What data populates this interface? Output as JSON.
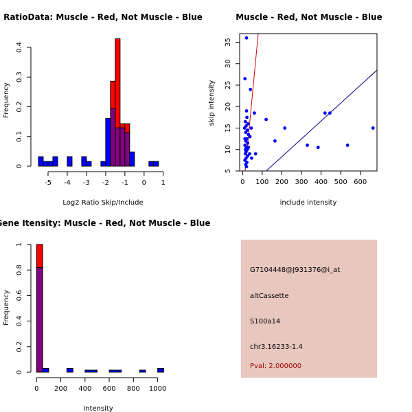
{
  "colors": {
    "muscle": "#ff0000",
    "not_muscle": "#0000ff",
    "overlap": "#800080",
    "info_bg": "#e8c7bf",
    "pval": "#a00000",
    "ratio_line": "#cc0000",
    "diag_line": "#00008b"
  },
  "info_panel": {
    "probe_id": "G7104448@J931376@i_at",
    "event_type": "altCassette",
    "gene": "S100a14",
    "location": "chr3.16233-1.4",
    "pval": "Pval: 2.000000"
  },
  "chart_data": [
    {
      "type": "histogram",
      "title": "RatioData: Muscle - Red, Not Muscle - Blue",
      "xlabel": "Log2 Ratio Skip/Include",
      "ylabel": "Frequency",
      "xlim": [
        -5.75,
        1.4
      ],
      "ylim": [
        0,
        0.43
      ],
      "xticks": [
        -5,
        -4,
        -3,
        -2,
        -1,
        0,
        1
      ],
      "yticks": [
        0.0,
        0.1,
        0.2,
        0.3,
        0.4
      ],
      "bin_width": 0.25,
      "bins_start": [
        -5.5,
        -5.25,
        -5.0,
        -4.75,
        -4.5,
        -4.25,
        -4.0,
        -3.75,
        -3.5,
        -3.25,
        -3.0,
        -2.75,
        -2.5,
        -2.25,
        -2.0,
        -1.75,
        -1.5,
        -1.25,
        -1.0,
        -0.75,
        -0.5,
        -0.25,
        0.0,
        0.25,
        0.5,
        0.75,
        1.0
      ],
      "series": [
        {
          "name": "Not Muscle",
          "values": [
            0.032,
            0.016,
            0.016,
            0.032,
            0,
            0,
            0.032,
            0,
            0,
            0.032,
            0.016,
            0,
            0,
            0.016,
            0.161,
            0.194,
            0.129,
            0.129,
            0.113,
            0.048,
            0,
            0,
            0,
            0.016,
            0.016,
            0,
            0
          ]
        },
        {
          "name": "Muscle",
          "values": [
            0,
            0,
            0,
            0,
            0,
            0,
            0,
            0,
            0,
            0,
            0,
            0,
            0,
            0,
            0,
            0.286,
            0.429,
            0.143,
            0.143,
            0,
            0,
            0,
            0,
            0,
            0,
            0,
            0
          ]
        }
      ]
    },
    {
      "type": "scatter",
      "title": "Muscle - Red, Not Muscle - Blue",
      "xlabel": "include intensity",
      "ylabel": "skip intensity",
      "xlim": [
        -15,
        685
      ],
      "ylim": [
        5,
        37
      ],
      "xticks": [
        0,
        100,
        200,
        300,
        400,
        500,
        600
      ],
      "yticks": [
        5,
        10,
        15,
        20,
        25,
        30,
        35
      ],
      "lines": [
        {
          "name": "ratio-line",
          "intercept": -1.2,
          "slope": 0.48
        },
        {
          "name": "identity-line",
          "intercept": 0,
          "slope": 0.0416
        }
      ],
      "points": [
        [
          20,
          36
        ],
        [
          12,
          26.5
        ],
        [
          40,
          24
        ],
        [
          20,
          19
        ],
        [
          60,
          18.5
        ],
        [
          22,
          17.5
        ],
        [
          14,
          16.5
        ],
        [
          28,
          16
        ],
        [
          18,
          15.5
        ],
        [
          10,
          15
        ],
        [
          44,
          15
        ],
        [
          24,
          14.5
        ],
        [
          16,
          14
        ],
        [
          30,
          13.5
        ],
        [
          38,
          13
        ],
        [
          12,
          12.5
        ],
        [
          22,
          12.5
        ],
        [
          16,
          12
        ],
        [
          26,
          11.5
        ],
        [
          12,
          11
        ],
        [
          20,
          10.5
        ],
        [
          30,
          10.5
        ],
        [
          14,
          10
        ],
        [
          24,
          10
        ],
        [
          18,
          9.5
        ],
        [
          36,
          9
        ],
        [
          14,
          9
        ],
        [
          26,
          8.5
        ],
        [
          18,
          8
        ],
        [
          46,
          8
        ],
        [
          12,
          7.5
        ],
        [
          22,
          7
        ],
        [
          16,
          6.5
        ],
        [
          66,
          9
        ],
        [
          20,
          6
        ],
        [
          120,
          17
        ],
        [
          215,
          15
        ],
        [
          165,
          12
        ],
        [
          330,
          11
        ],
        [
          385,
          10.5
        ],
        [
          420,
          18.5
        ],
        [
          445,
          18.5
        ],
        [
          535,
          11
        ],
        [
          665,
          15
        ]
      ]
    },
    {
      "type": "histogram",
      "title": "Gene Itensity: Muscle - Red, Not Muscle - Blue",
      "xlabel": "Intensity",
      "ylabel": "Frequency",
      "xlim": [
        -30,
        1110
      ],
      "ylim": [
        0,
        1.0
      ],
      "xticks": [
        0,
        200,
        400,
        600,
        800,
        1000
      ],
      "yticks": [
        0.0,
        0.2,
        0.4,
        0.6,
        0.8,
        1.0
      ],
      "bin_width": 50,
      "bins_start": [
        0,
        50,
        100,
        150,
        200,
        250,
        300,
        350,
        400,
        450,
        500,
        550,
        600,
        650,
        700,
        750,
        800,
        850,
        900,
        950,
        1000
      ],
      "series": [
        {
          "name": "Not Muscle",
          "values": [
            0.82,
            0.03,
            0,
            0,
            0,
            0.03,
            0,
            0,
            0.016,
            0.016,
            0,
            0,
            0.016,
            0.016,
            0,
            0,
            0,
            0.016,
            0,
            0,
            0.03
          ]
        },
        {
          "name": "Muscle",
          "values": [
            1.0,
            0,
            0,
            0,
            0,
            0,
            0,
            0,
            0,
            0,
            0,
            0,
            0,
            0,
            0,
            0,
            0,
            0,
            0,
            0,
            0
          ]
        }
      ]
    }
  ]
}
